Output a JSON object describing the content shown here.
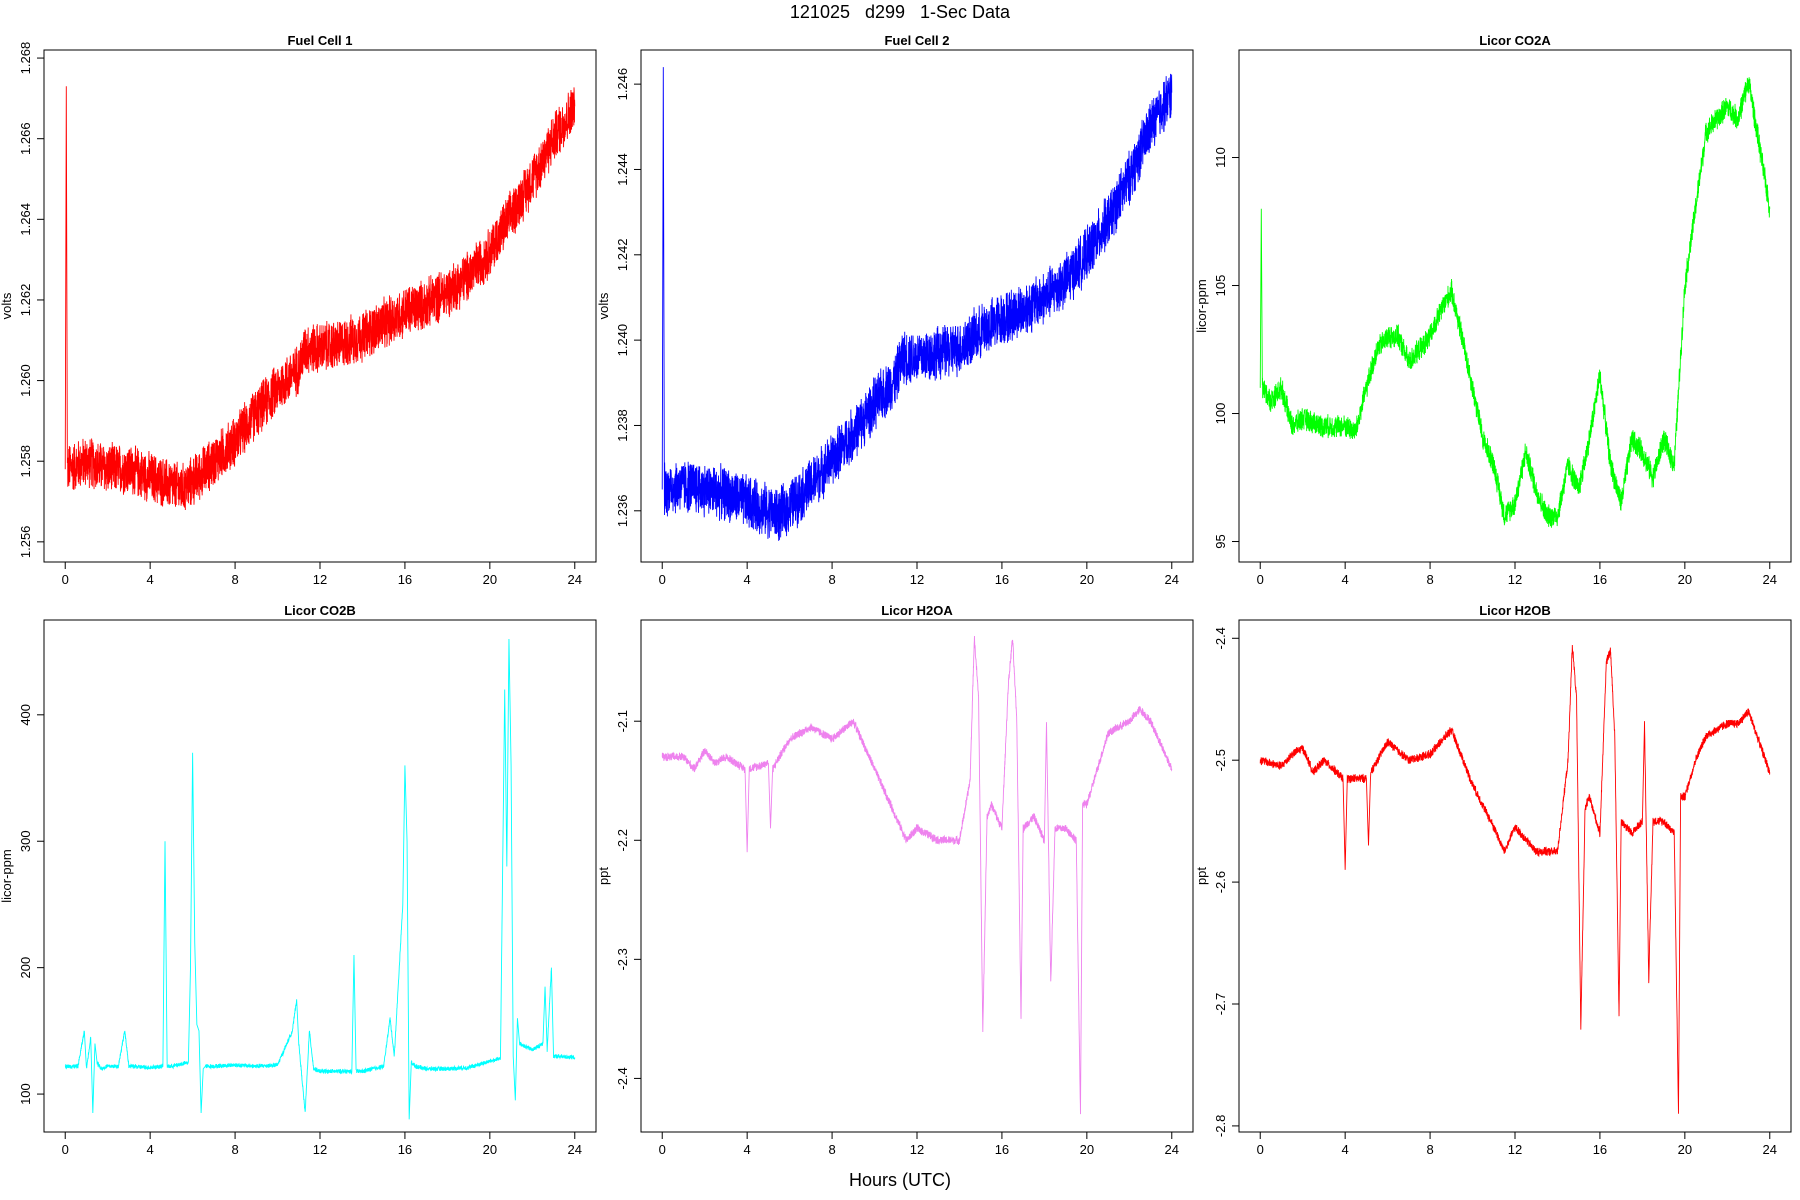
{
  "figure": {
    "title": "121025   d299   1-Sec Data",
    "xlabel": "Hours (UTC)"
  },
  "chart_data": [
    {
      "type": "line",
      "title": "Fuel Cell 1",
      "xlabel": "",
      "ylabel": "volts",
      "xlim": [
        -1,
        25
      ],
      "ylim": [
        1.2555,
        1.2682
      ],
      "xticks": [
        0,
        4,
        8,
        12,
        16,
        20,
        24
      ],
      "yticks": [
        1.256,
        1.258,
        1.26,
        1.262,
        1.264,
        1.266,
        1.268
      ],
      "ytick_labels": [
        "1.256",
        "1.258",
        "1.260",
        "1.262",
        "1.264",
        "1.266",
        "1.268"
      ],
      "color": "#ff0000",
      "noise": 0.0007,
      "x": [
        0,
        0.05,
        0.1,
        1,
        2,
        3,
        4,
        5,
        5.5,
        6,
        7,
        8,
        9,
        10,
        11,
        11.3,
        12,
        13,
        14,
        15,
        16,
        17,
        18,
        19,
        20,
        21,
        22,
        23,
        24
      ],
      "y": [
        1.2578,
        1.2673,
        1.2578,
        1.258,
        1.2578,
        1.2578,
        1.2576,
        1.2574,
        1.2573,
        1.2575,
        1.258,
        1.2585,
        1.2592,
        1.2598,
        1.2603,
        1.2608,
        1.2608,
        1.2609,
        1.2611,
        1.2614,
        1.2617,
        1.2619,
        1.2622,
        1.2626,
        1.2632,
        1.2641,
        1.265,
        1.266,
        1.2668
      ]
    },
    {
      "type": "line",
      "title": "Fuel Cell 2",
      "xlabel": "",
      "ylabel": "volts",
      "xlim": [
        -1,
        25
      ],
      "ylim": [
        1.2348,
        1.2468
      ],
      "xticks": [
        0,
        4,
        8,
        12,
        16,
        20,
        24
      ],
      "yticks": [
        1.236,
        1.238,
        1.24,
        1.242,
        1.244,
        1.246
      ],
      "ytick_labels": [
        "1.236",
        "1.238",
        "1.240",
        "1.242",
        "1.244",
        "1.246"
      ],
      "color": "#0000ff",
      "noise": 0.0007,
      "x": [
        0,
        0.05,
        0.1,
        1,
        2,
        3,
        4,
        5,
        5.5,
        6,
        7,
        8,
        9,
        10,
        11,
        11.3,
        12,
        13,
        14,
        15,
        16,
        17,
        18,
        19,
        20,
        21,
        22,
        23,
        24
      ],
      "y": [
        1.2365,
        1.2464,
        1.2365,
        1.2366,
        1.2365,
        1.2364,
        1.2362,
        1.236,
        1.2359,
        1.2361,
        1.2366,
        1.2372,
        1.2378,
        1.2385,
        1.2391,
        1.2396,
        1.2396,
        1.2397,
        1.2398,
        1.2402,
        1.2405,
        1.2407,
        1.241,
        1.2414,
        1.242,
        1.2428,
        1.2438,
        1.245,
        1.2458
      ]
    },
    {
      "type": "line",
      "title": "Licor CO2A",
      "xlabel": "",
      "ylabel": "licor-ppm",
      "xlim": [
        -1,
        25
      ],
      "ylim": [
        94.2,
        114.2
      ],
      "xticks": [
        0,
        4,
        8,
        12,
        16,
        20,
        24
      ],
      "yticks": [
        95,
        100,
        105,
        110
      ],
      "ytick_labels": [
        "95",
        "100",
        "105",
        "110"
      ],
      "color": "#00ff00",
      "noise": 0.5,
      "x": [
        0,
        0.05,
        0.1,
        0.5,
        1,
        1.5,
        2,
        3,
        4,
        4.5,
        5,
        5.5,
        6,
        6.5,
        7,
        7.5,
        8,
        8.5,
        9,
        9.5,
        10,
        10.5,
        11,
        11.5,
        12,
        12.5,
        13,
        13.5,
        14,
        14.5,
        15,
        15.5,
        16,
        16.5,
        17,
        17.5,
        18,
        18.5,
        19,
        19.5,
        20,
        20.5,
        21,
        21.5,
        22,
        22.5,
        23,
        23.5,
        24
      ],
      "y": [
        101,
        108,
        101,
        100.5,
        101,
        99.5,
        99.8,
        99.5,
        99.5,
        99.3,
        101,
        102.5,
        103,
        103,
        102,
        102.5,
        103,
        104,
        104.8,
        103,
        101,
        99,
        98,
        96,
        96.5,
        98.5,
        97,
        96,
        96,
        98,
        97,
        99,
        101.5,
        98,
        96.5,
        99,
        98.5,
        97.5,
        99,
        98,
        105,
        108,
        111,
        111.5,
        112,
        111.5,
        113,
        110.5,
        108
      ]
    },
    {
      "type": "line",
      "title": "Licor CO2B",
      "xlabel": "",
      "ylabel": "licor-ppm",
      "xlim": [
        -1,
        25
      ],
      "ylim": [
        70,
        475
      ],
      "xticks": [
        0,
        4,
        8,
        12,
        16,
        20,
        24
      ],
      "yticks": [
        100,
        200,
        300,
        400
      ],
      "ytick_labels": [
        "100",
        "200",
        "300",
        "400"
      ],
      "color": "#00ffff",
      "noise": 2,
      "x": [
        0,
        0.6,
        0.9,
        1,
        1.2,
        1.3,
        1.4,
        1.5,
        1.7,
        2,
        2.5,
        2.8,
        3,
        4,
        4.6,
        4.7,
        4.8,
        5,
        5.8,
        5.9,
        6,
        6.1,
        6.2,
        6.3,
        6.4,
        6.5,
        6.6,
        7,
        8,
        9,
        10,
        10.7,
        10.9,
        11,
        11.3,
        11.5,
        11.7,
        12,
        13,
        13.5,
        13.6,
        13.7,
        14,
        15,
        15.3,
        15.5,
        15.9,
        16,
        16.1,
        16.2,
        16.3,
        16.5,
        17,
        18,
        19,
        20,
        20.5,
        20.7,
        20.8,
        20.9,
        21,
        21.1,
        21.2,
        21.3,
        21.4,
        22,
        22.5,
        22.6,
        22.7,
        22.9,
        23,
        24
      ],
      "y": [
        122,
        122,
        150,
        120,
        145,
        85,
        140,
        125,
        120,
        122,
        122,
        150,
        122,
        121,
        122,
        300,
        122,
        122,
        125,
        200,
        370,
        220,
        155,
        150,
        85,
        120,
        122,
        122,
        123,
        122,
        123,
        150,
        175,
        140,
        85,
        150,
        120,
        118,
        118,
        118,
        210,
        118,
        118,
        122,
        160,
        130,
        250,
        360,
        300,
        80,
        125,
        122,
        120,
        120,
        121,
        126,
        128,
        420,
        280,
        460,
        360,
        130,
        95,
        160,
        140,
        135,
        140,
        185,
        135,
        200,
        130,
        129
      ]
    },
    {
      "type": "line",
      "title": "Licor H2OA",
      "xlabel": "",
      "ylabel": "ppt",
      "xlim": [
        -1,
        25
      ],
      "ylim": [
        -2.445,
        -2.015
      ],
      "xticks": [
        0,
        4,
        8,
        12,
        16,
        20,
        24
      ],
      "yticks": [
        -2.4,
        -2.3,
        -2.2,
        -2.1
      ],
      "ytick_labels": [
        "-2.4",
        "-2.3",
        "-2.2",
        "-2.1"
      ],
      "color": "#ee82ee",
      "noise": 0.004,
      "x": [
        0,
        1,
        1.5,
        2,
        2.5,
        3,
        3.9,
        4,
        4.1,
        5,
        5.1,
        5.2,
        6,
        7,
        8,
        9,
        10,
        11,
        11.5,
        12,
        13,
        14,
        14.5,
        14.7,
        14.9,
        15.1,
        15.3,
        15.5,
        16,
        16.3,
        16.5,
        16.7,
        16.9,
        17,
        17.5,
        18,
        18.1,
        18.3,
        18.5,
        19,
        19.5,
        19.7,
        19.8,
        20,
        20.5,
        21,
        22,
        22.5,
        23,
        24
      ],
      "y": [
        -2.13,
        -2.13,
        -2.14,
        -2.125,
        -2.135,
        -2.13,
        -2.14,
        -2.21,
        -2.14,
        -2.135,
        -2.19,
        -2.14,
        -2.115,
        -2.105,
        -2.115,
        -2.1,
        -2.14,
        -2.18,
        -2.2,
        -2.19,
        -2.2,
        -2.2,
        -2.15,
        -2.03,
        -2.08,
        -2.36,
        -2.18,
        -2.17,
        -2.19,
        -2.07,
        -2.03,
        -2.1,
        -2.35,
        -2.19,
        -2.18,
        -2.2,
        -2.1,
        -2.32,
        -2.19,
        -2.19,
        -2.2,
        -2.43,
        -2.17,
        -2.17,
        -2.14,
        -2.11,
        -2.1,
        -2.09,
        -2.1,
        -2.14
      ]
    },
    {
      "type": "line",
      "title": "Licor H2OB",
      "xlabel": "",
      "ylabel": "ppt",
      "xlim": [
        -1,
        25
      ],
      "ylim": [
        -2.805,
        -2.385
      ],
      "xticks": [
        0,
        4,
        8,
        12,
        16,
        20,
        24
      ],
      "yticks": [
        -2.8,
        -2.7,
        -2.6,
        -2.5,
        -2.4
      ],
      "ytick_labels": [
        "-2.8",
        "-2.7",
        "-2.6",
        "-2.5",
        "-2.4"
      ],
      "color": "#ff0000",
      "noise": 0.004,
      "x": [
        0,
        1,
        1.5,
        2,
        2.5,
        3,
        3.9,
        4,
        4.1,
        5,
        5.1,
        5.2,
        6,
        7,
        8,
        9,
        10,
        11,
        11.5,
        12,
        13,
        14,
        14.5,
        14.7,
        14.9,
        15.1,
        15.3,
        15.5,
        16,
        16.3,
        16.5,
        16.7,
        16.9,
        17,
        17.5,
        18,
        18.1,
        18.3,
        18.5,
        19,
        19.5,
        19.7,
        19.8,
        20,
        20.5,
        21,
        22,
        22.5,
        23,
        24
      ],
      "y": [
        -2.5,
        -2.505,
        -2.495,
        -2.49,
        -2.51,
        -2.5,
        -2.515,
        -2.59,
        -2.515,
        -2.515,
        -2.57,
        -2.51,
        -2.485,
        -2.5,
        -2.495,
        -2.475,
        -2.52,
        -2.555,
        -2.575,
        -2.555,
        -2.575,
        -2.575,
        -2.5,
        -2.405,
        -2.45,
        -2.72,
        -2.54,
        -2.53,
        -2.56,
        -2.42,
        -2.41,
        -2.48,
        -2.71,
        -2.55,
        -2.56,
        -2.55,
        -2.47,
        -2.68,
        -2.55,
        -2.55,
        -2.56,
        -2.79,
        -2.53,
        -2.53,
        -2.5,
        -2.48,
        -2.47,
        -2.47,
        -2.46,
        -2.51
      ]
    }
  ]
}
